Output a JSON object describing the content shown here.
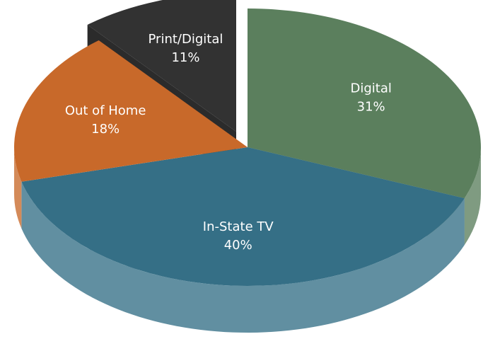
{
  "chart_data": {
    "type": "pie3d",
    "categories": [
      "Digital",
      "In-State TV",
      "Out of Home",
      "Print/Digital"
    ],
    "values": [
      31,
      40,
      18,
      11
    ],
    "value_labels": [
      "31%",
      "40%",
      "18%",
      "11%"
    ],
    "colors": [
      "#5b7f5d",
      "#356f86",
      "#c8692a",
      "#323232"
    ],
    "explode": [
      false,
      false,
      false,
      true
    ]
  }
}
